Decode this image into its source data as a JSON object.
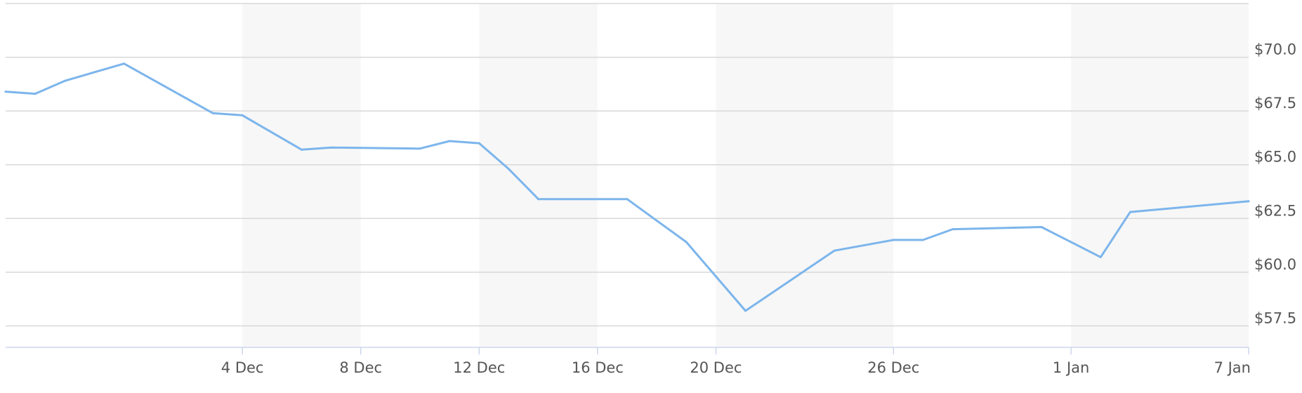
{
  "chart_data": {
    "type": "line",
    "title": "",
    "xlabel": "",
    "ylabel": "",
    "x_type": "date",
    "x_range": [
      "2018-11-26",
      "2019-01-07"
    ],
    "ylim": [
      56.5,
      72.5
    ],
    "y_ticks": [
      57.5,
      60.0,
      62.5,
      65.0,
      67.5,
      70.0
    ],
    "y_tick_labels": [
      "$57.5",
      "$60.0",
      "$62.5",
      "$65.0",
      "$67.5",
      "$70.0"
    ],
    "y_axis_position": "right",
    "x_ticks": [
      {
        "date": "2018-12-04",
        "label": "4 Dec"
      },
      {
        "date": "2018-12-08",
        "label": "8 Dec"
      },
      {
        "date": "2018-12-12",
        "label": "12 Dec"
      },
      {
        "date": "2018-12-16",
        "label": "16 Dec"
      },
      {
        "date": "2018-12-20",
        "label": "20 Dec"
      },
      {
        "date": "2018-12-26",
        "label": "26 Dec"
      },
      {
        "date": "2019-01-01",
        "label": "1 Jan"
      },
      {
        "date": "2019-01-07",
        "label": "7 Jan"
      }
    ],
    "shaded_bands": [
      [
        "2018-12-04",
        "2018-12-08"
      ],
      [
        "2018-12-12",
        "2018-12-16"
      ],
      [
        "2018-12-20",
        "2018-12-26"
      ],
      [
        "2019-01-01",
        "2019-01-07"
      ]
    ],
    "grid": true,
    "legend": "none",
    "line_color": "#7cb5ec",
    "band_color": "#f7f7f7",
    "grid_color": "#d8d8d8",
    "axis_color": "#ccd6eb",
    "series": [
      {
        "points": [
          {
            "x": "2018-11-26",
            "y": 68.4
          },
          {
            "x": "2018-11-27",
            "y": 68.3
          },
          {
            "x": "2018-11-28",
            "y": 68.9
          },
          {
            "x": "2018-11-30",
            "y": 69.7
          },
          {
            "x": "2018-12-03",
            "y": 67.4
          },
          {
            "x": "2018-12-04",
            "y": 67.3
          },
          {
            "x": "2018-12-06",
            "y": 65.7
          },
          {
            "x": "2018-12-07",
            "y": 65.8
          },
          {
            "x": "2018-12-10",
            "y": 65.75
          },
          {
            "x": "2018-12-11",
            "y": 66.1
          },
          {
            "x": "2018-12-12",
            "y": 66.0
          },
          {
            "x": "2018-12-13",
            "y": 64.8
          },
          {
            "x": "2018-12-14",
            "y": 63.4
          },
          {
            "x": "2018-12-17",
            "y": 63.4
          },
          {
            "x": "2018-12-18",
            "y": 62.4
          },
          {
            "x": "2018-12-19",
            "y": 61.4
          },
          {
            "x": "2018-12-20",
            "y": 59.8
          },
          {
            "x": "2018-12-21",
            "y": 58.2
          },
          {
            "x": "2018-12-24",
            "y": 61.0
          },
          {
            "x": "2018-12-26",
            "y": 61.5
          },
          {
            "x": "2018-12-27",
            "y": 61.5
          },
          {
            "x": "2018-12-28",
            "y": 62.0
          },
          {
            "x": "2018-12-31",
            "y": 62.1
          },
          {
            "x": "2019-01-02",
            "y": 60.7
          },
          {
            "x": "2019-01-03",
            "y": 62.8
          },
          {
            "x": "2019-01-07",
            "y": 63.3
          }
        ]
      }
    ]
  }
}
